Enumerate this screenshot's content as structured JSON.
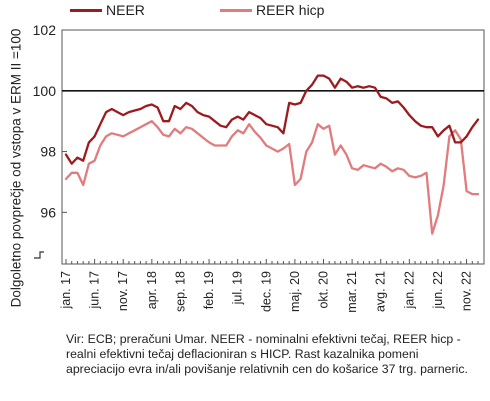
{
  "chart_data": {
    "type": "line",
    "title": "",
    "ylabel": "Dolgoletno povprečje od vstopa v ERM II =100",
    "ylim": [
      94.3,
      102
    ],
    "yticks": [
      96,
      98,
      100,
      102
    ],
    "reference_line": 100,
    "grid": false,
    "legend_position": "top-left",
    "x_tick_labels": [
      "jan. 17",
      "jun. 17",
      "nov. 17",
      "apr. 18",
      "sep. 18",
      "feb. 19",
      "jul. 19",
      "dec. 19",
      "maj. 20",
      "okt. 20",
      "mar. 21",
      "avg. 21",
      "jan. 22",
      "jun. 22",
      "nov. 22"
    ],
    "series": [
      {
        "name": "NEER",
        "color": "#9b1b1f",
        "values": [
          97.9,
          97.6,
          97.8,
          97.7,
          98.3,
          98.5,
          98.9,
          99.3,
          99.4,
          99.3,
          99.2,
          99.3,
          99.35,
          99.4,
          99.5,
          99.55,
          99.45,
          99.0,
          99.0,
          99.5,
          99.4,
          99.6,
          99.5,
          99.3,
          99.2,
          99.15,
          99.0,
          98.85,
          98.8,
          99.05,
          99.15,
          99.05,
          99.3,
          99.2,
          99.1,
          98.9,
          98.85,
          98.8,
          98.6,
          99.6,
          99.55,
          99.6,
          100.0,
          100.2,
          100.5,
          100.5,
          100.4,
          100.1,
          100.4,
          100.3,
          100.1,
          100.15,
          100.1,
          100.15,
          100.1,
          99.8,
          99.75,
          99.6,
          99.65,
          99.45,
          99.2,
          99.0,
          98.85,
          98.8,
          98.8,
          98.5,
          98.7,
          98.85,
          98.3,
          98.3,
          98.5,
          98.8,
          99.05
        ]
      },
      {
        "name": "REER hicp",
        "color": "#e07c7e",
        "values": [
          97.1,
          97.3,
          97.3,
          96.9,
          97.6,
          97.7,
          98.2,
          98.5,
          98.6,
          98.55,
          98.5,
          98.6,
          98.7,
          98.8,
          98.9,
          99.0,
          98.8,
          98.55,
          98.5,
          98.75,
          98.6,
          98.8,
          98.75,
          98.6,
          98.45,
          98.3,
          98.2,
          98.2,
          98.2,
          98.5,
          98.7,
          98.6,
          98.9,
          98.65,
          98.45,
          98.2,
          98.1,
          98.0,
          98.1,
          98.25,
          96.9,
          97.1,
          98.0,
          98.3,
          98.9,
          98.75,
          98.85,
          97.9,
          98.2,
          97.9,
          97.45,
          97.4,
          97.55,
          97.5,
          97.45,
          97.6,
          97.5,
          97.35,
          97.45,
          97.4,
          97.2,
          97.15,
          97.2,
          97.3,
          95.3,
          95.9,
          96.9,
          98.5,
          98.7,
          98.4,
          96.7,
          96.6,
          96.6
        ]
      }
    ]
  },
  "source_note": "Vir: ECB; preračuni Umar. NEER - nominalni efektivni tečaj, REER hicp - realni efektivni tečaj deflacioniran s HICP. Rast kazalnika pomeni apreciacijo evra in/ali povišanje relativnih cen do košarice 37 trg. parneric."
}
